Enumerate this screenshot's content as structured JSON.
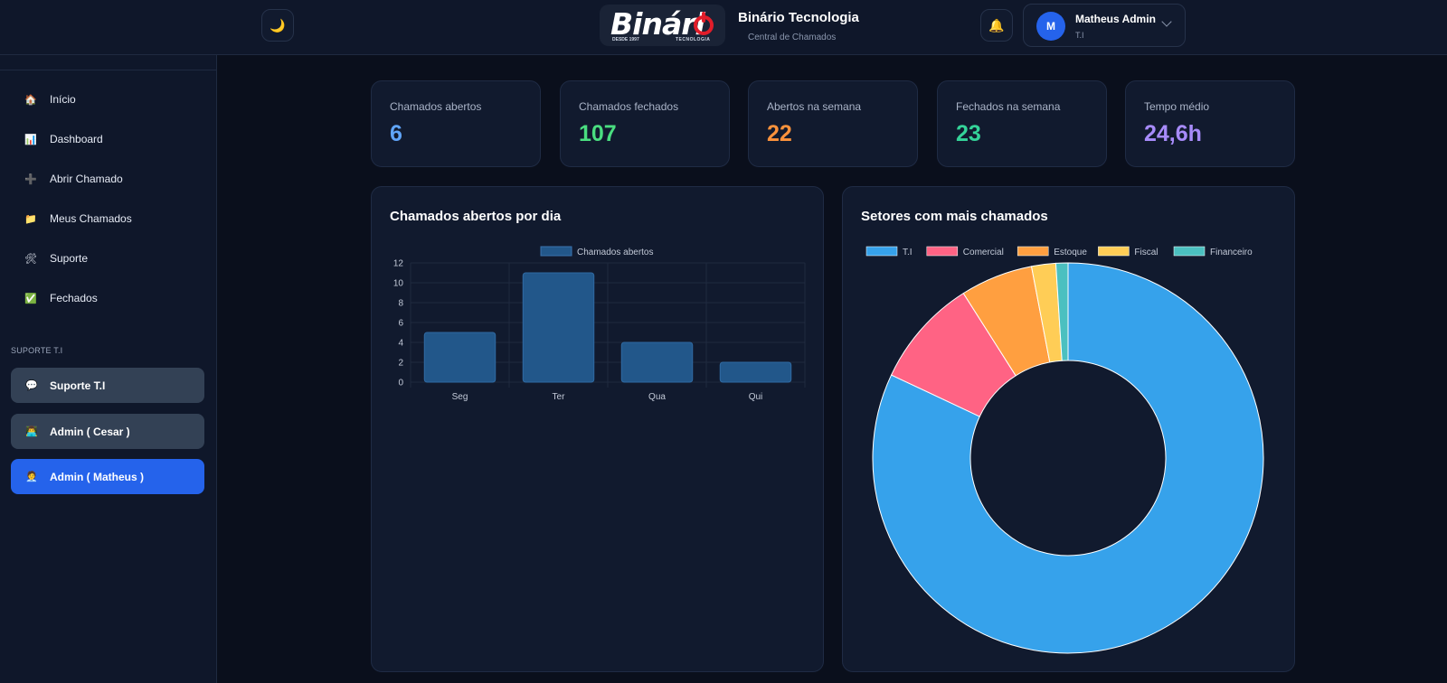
{
  "header": {
    "theme_icon": "moon-icon",
    "brand_logo_text": "Binári",
    "brand_logo_left": "DESDE 1997",
    "brand_logo_right": "TECNOLOGIA",
    "brand_name": "Binário Tecnologia",
    "brand_subtitle": "Central de Chamados",
    "bell_icon": "bell-icon",
    "user": {
      "initial": "M",
      "name": "Matheus Admin",
      "role": "T.I"
    }
  },
  "sidebar": {
    "items": [
      {
        "label": "Início",
        "icon": "🏠"
      },
      {
        "label": "Dashboard",
        "icon": "📊"
      },
      {
        "label": "Abrir Chamado",
        "icon": "➕"
      },
      {
        "label": "Meus Chamados",
        "icon": "📁"
      },
      {
        "label": "Suporte",
        "icon": "🛠"
      },
      {
        "label": "Fechados",
        "icon": "✅"
      }
    ],
    "section_label": "SUPORTE T.I",
    "support": [
      {
        "label": "Suporte T.I",
        "icon": "💬",
        "active": false
      },
      {
        "label": "Admin ( Cesar )",
        "icon": "👨‍💻",
        "active": false
      },
      {
        "label": "Admin ( Matheus )",
        "icon": "🧑‍💼",
        "active": true
      }
    ]
  },
  "stats": [
    {
      "label": "Chamados abertos",
      "value": "6",
      "color": "#60a5fa"
    },
    {
      "label": "Chamados fechados",
      "value": "107",
      "color": "#4ade80"
    },
    {
      "label": "Abertos na semana",
      "value": "22",
      "color": "#fb923c"
    },
    {
      "label": "Fechados na semana",
      "value": "23",
      "color": "#34d399"
    },
    {
      "label": "Tempo médio",
      "value": "24,6h",
      "color": "#a78bfa"
    }
  ],
  "chart_data": [
    {
      "type": "bar",
      "title": "Chamados abertos por dia",
      "categories": [
        "Seg",
        "Ter",
        "Qua",
        "Qui"
      ],
      "series": [
        {
          "name": "Chamados abertos",
          "values": [
            5,
            11,
            4,
            2
          ],
          "color": "#22578a"
        }
      ],
      "ylim": [
        0,
        12
      ],
      "yticks": [
        0,
        2,
        4,
        6,
        8,
        10,
        12
      ],
      "grid": true,
      "legend": "top"
    },
    {
      "type": "pie",
      "title": "Setores com mais chamados",
      "donut": true,
      "labels": [
        "T.I",
        "Comercial",
        "Estoque",
        "Fiscal",
        "Financeiro"
      ],
      "values": [
        82,
        9,
        6,
        2,
        1
      ],
      "colors": [
        "#36a2eb",
        "#ff6384",
        "#ff9f40",
        "#ffcd56",
        "#4bc0c0"
      ],
      "legend": "top"
    }
  ]
}
